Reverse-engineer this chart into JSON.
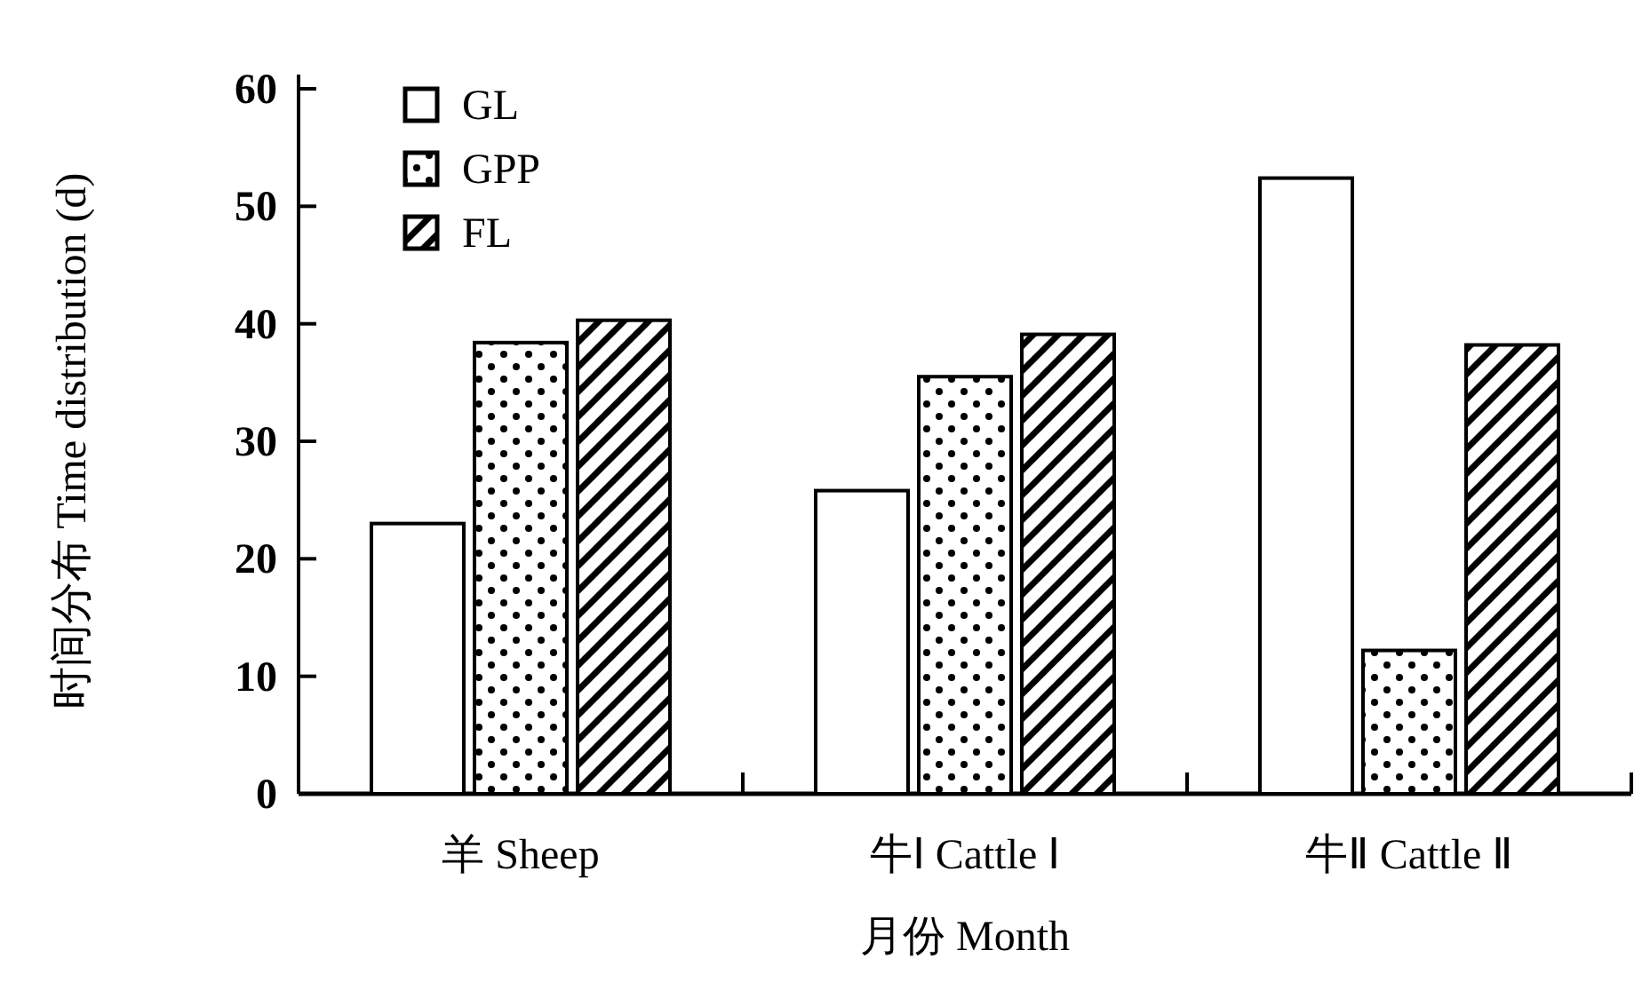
{
  "chart_data": {
    "type": "bar",
    "xlabel": "月份 Month",
    "ylabel": "时间分布 Time distribution (d)",
    "categories": [
      "羊 Sheep",
      "牛Ⅰ Cattle Ⅰ",
      "牛Ⅱ Cattle Ⅱ"
    ],
    "series": [
      {
        "name": "GL",
        "color": "#000000",
        "values": [
          23.0,
          25.8,
          52.4
        ]
      },
      {
        "name": "GPP",
        "color": "#000000",
        "values": [
          38.4,
          35.5,
          12.2
        ]
      },
      {
        "name": "FL",
        "color": "#000000",
        "values": [
          40.3,
          39.1,
          38.2
        ]
      }
    ],
    "ylim": [
      0,
      60
    ],
    "yticks": [
      0,
      10,
      20,
      30,
      40,
      50,
      60
    ],
    "legend": "top left"
  }
}
